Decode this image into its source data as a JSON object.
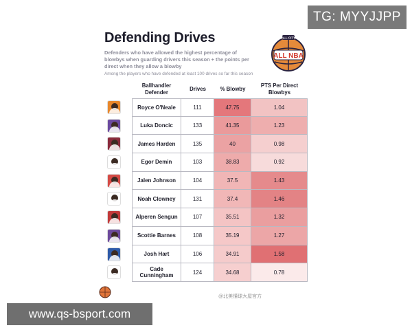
{
  "overlays": {
    "top_watermark": "TG: MYYJJPP",
    "bottom_watermark": "www.qs-bsport.com"
  },
  "header": {
    "title": "Defending Drives",
    "description": "Defenders who have allowed the highest percentage of blowbys when guarding drivers this season + the points per direct when they allow a blowby",
    "subdescription": "Among the players who have defended at least 100 drives so far this season",
    "logo_text": "ALL NBA",
    "logo_subtext": "ALL CITY"
  },
  "columns": {
    "defender": "Ballhandler Defender",
    "drives": "Drives",
    "blowby": "% Blowby",
    "pts": "PTS Per Direct Blowbys"
  },
  "rows": [
    {
      "name": "Royce O'Neale",
      "drives": "111",
      "blowby": "47.75",
      "pts": "1.04",
      "avatar_color": "#e8872b",
      "pct_color": "#e4777b",
      "pts_color": "#f2c3c3"
    },
    {
      "name": "Luka Doncic",
      "drives": "133",
      "blowby": "41.35",
      "pts": "1.23",
      "avatar_color": "#6b4aa0",
      "pct_color": "#ea9a9b",
      "pts_color": "#eeaeae"
    },
    {
      "name": "James Harden",
      "drives": "135",
      "blowby": "40",
      "pts": "0.98",
      "avatar_color": "#8a2a3c",
      "pct_color": "#eba2a3",
      "pts_color": "#f5cfcf"
    },
    {
      "name": "Egor Demin",
      "drives": "103",
      "blowby": "38.83",
      "pts": "0.92",
      "avatar_color": "#ffffff",
      "pct_color": "#eeabab",
      "pts_color": "#f7dbdb"
    },
    {
      "name": "Jalen Johnson",
      "drives": "104",
      "blowby": "37.5",
      "pts": "1.43",
      "avatar_color": "#d54a45",
      "pct_color": "#f1b6b6",
      "pts_color": "#e58a8c"
    },
    {
      "name": "Noah Clowney",
      "drives": "131",
      "blowby": "37.4",
      "pts": "1.46",
      "avatar_color": "#ffffff",
      "pct_color": "#f1b7b7",
      "pts_color": "#e38385"
    },
    {
      "name": "Alperen Sengun",
      "drives": "107",
      "blowby": "35.51",
      "pts": "1.32",
      "avatar_color": "#c23a3a",
      "pct_color": "#f4c4c4",
      "pts_color": "#ea9e9f"
    },
    {
      "name": "Scottie Barnes",
      "drives": "108",
      "blowby": "35.19",
      "pts": "1.27",
      "avatar_color": "#6d4a9c",
      "pct_color": "#f5c8c8",
      "pts_color": "#eca6a7"
    },
    {
      "name": "Josh Hart",
      "drives": "106",
      "blowby": "34.91",
      "pts": "1.58",
      "avatar_color": "#2e5aa8",
      "pct_color": "#f5cbcb",
      "pts_color": "#e07073"
    },
    {
      "name": "Cade Cunningham",
      "drives": "124",
      "blowby": "34.68",
      "pts": "0.78",
      "avatar_color": "#ffffff",
      "pct_color": "#f6cfcf",
      "pts_color": "#fbeaea"
    }
  ],
  "footer": {
    "credit": "@北美懂球大屋官方"
  },
  "colors": {
    "grid": "#b9b9c2",
    "title": "#1d1d2b"
  }
}
